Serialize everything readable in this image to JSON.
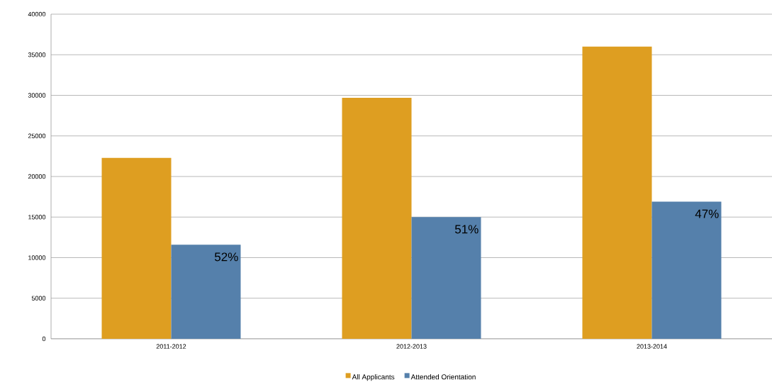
{
  "chart_data": {
    "type": "bar",
    "categories": [
      "2011-2012",
      "2012-2013",
      "2013-2014"
    ],
    "series": [
      {
        "name": "All Applicants",
        "color": "#de9e21",
        "values": [
          22300,
          29700,
          36000
        ]
      },
      {
        "name": "Attended Orientation",
        "color": "#5580ab",
        "values": [
          11600,
          15000,
          16900
        ]
      }
    ],
    "annotations": [
      "52%",
      "51%",
      "47%"
    ],
    "ylim": [
      0,
      40000
    ],
    "yticks": [
      0,
      5000,
      10000,
      15000,
      20000,
      25000,
      30000,
      35000,
      40000
    ],
    "grid": "y",
    "legend": "bottom"
  }
}
